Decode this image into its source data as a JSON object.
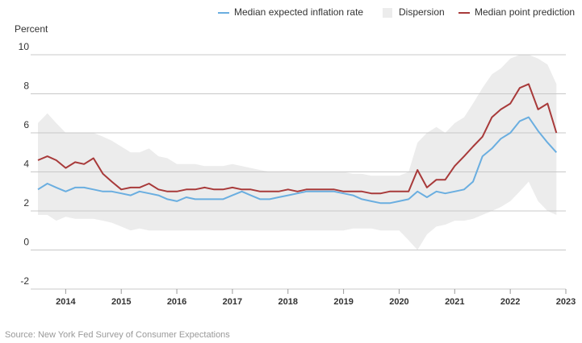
{
  "chart_data": {
    "type": "line",
    "y_label": "Percent",
    "source": "Source: New York Fed Survey of Consumer Expectations",
    "legend": "top-right",
    "grid": true,
    "xlim": [
      2013.37,
      2023.0
    ],
    "xticks": [
      2014,
      2015,
      2016,
      2017,
      2018,
      2019,
      2020,
      2021,
      2022,
      2023
    ],
    "ylim": [
      -2,
      10
    ],
    "yticks": [
      -2,
      0,
      2,
      4,
      6,
      8,
      10
    ],
    "x": [
      2013.5,
      2013.67,
      2013.83,
      2014,
      2014.17,
      2014.33,
      2014.5,
      2014.67,
      2014.83,
      2015,
      2015.17,
      2015.33,
      2015.5,
      2015.67,
      2015.83,
      2016,
      2016.17,
      2016.33,
      2016.5,
      2016.67,
      2016.83,
      2017,
      2017.17,
      2017.33,
      2017.5,
      2017.67,
      2017.83,
      2018,
      2018.17,
      2018.33,
      2018.5,
      2018.67,
      2018.83,
      2019,
      2019.17,
      2019.33,
      2019.5,
      2019.67,
      2019.83,
      2020,
      2020.17,
      2020.33,
      2020.5,
      2020.67,
      2020.83,
      2021,
      2021.17,
      2021.33,
      2021.5,
      2021.67,
      2021.83,
      2022,
      2022.17,
      2022.33,
      2022.5,
      2022.67,
      2022.83
    ],
    "series": [
      {
        "name": "Median expected inflation rate",
        "color": "#6aaee0",
        "values": [
          3.1,
          3.4,
          3.2,
          3.0,
          3.2,
          3.2,
          3.1,
          3.0,
          3.0,
          2.9,
          2.8,
          3.0,
          2.9,
          2.8,
          2.6,
          2.5,
          2.7,
          2.6,
          2.6,
          2.6,
          2.6,
          2.8,
          3.0,
          2.8,
          2.6,
          2.6,
          2.7,
          2.8,
          2.9,
          3.0,
          3.0,
          3.0,
          3.0,
          2.9,
          2.8,
          2.6,
          2.5,
          2.4,
          2.4,
          2.5,
          2.6,
          3.0,
          2.7,
          3.0,
          2.9,
          3.0,
          3.1,
          3.5,
          4.8,
          5.2,
          5.7,
          6.0,
          6.6,
          6.8,
          6.1,
          5.5,
          5.0
        ]
      },
      {
        "name": "Dispersion",
        "color": "#ececec",
        "area": true,
        "upper": [
          6.5,
          7.0,
          6.5,
          6.0,
          6.0,
          6.0,
          6.0,
          5.8,
          5.6,
          5.3,
          5.0,
          5.0,
          5.2,
          4.8,
          4.7,
          4.4,
          4.4,
          4.4,
          4.3,
          4.3,
          4.3,
          4.4,
          4.3,
          4.2,
          4.1,
          4.0,
          4.0,
          4.0,
          4.0,
          4.0,
          4.0,
          4.0,
          4.0,
          4.0,
          3.9,
          3.9,
          3.8,
          3.8,
          3.8,
          3.8,
          4.0,
          5.5,
          6.0,
          6.3,
          6.0,
          6.5,
          6.8,
          7.5,
          8.3,
          9.0,
          9.3,
          9.8,
          10.0,
          10.0,
          9.8,
          9.5,
          8.5
        ],
        "lower": [
          1.8,
          1.8,
          1.5,
          1.7,
          1.6,
          1.6,
          1.6,
          1.5,
          1.4,
          1.2,
          1.0,
          1.1,
          1.0,
          1.0,
          1.0,
          1.0,
          1.0,
          1.0,
          1.0,
          1.0,
          1.0,
          1.0,
          1.0,
          1.0,
          1.0,
          1.0,
          1.0,
          1.0,
          1.0,
          1.0,
          1.0,
          1.0,
          1.0,
          1.0,
          1.1,
          1.1,
          1.1,
          1.0,
          1.0,
          1.0,
          0.5,
          0.0,
          0.8,
          1.2,
          1.3,
          1.5,
          1.5,
          1.6,
          1.8,
          2.0,
          2.2,
          2.5,
          3.0,
          3.5,
          2.5,
          2.0,
          1.8
        ]
      },
      {
        "name": "Median point prediction",
        "color": "#a83a3a",
        "values": [
          4.6,
          4.8,
          4.6,
          4.2,
          4.5,
          4.4,
          4.7,
          3.9,
          3.5,
          3.1,
          3.2,
          3.2,
          3.4,
          3.1,
          3.0,
          3.0,
          3.1,
          3.1,
          3.2,
          3.1,
          3.1,
          3.2,
          3.1,
          3.1,
          3.0,
          3.0,
          3.0,
          3.1,
          3.0,
          3.1,
          3.1,
          3.1,
          3.1,
          3.0,
          3.0,
          3.0,
          2.9,
          2.9,
          3.0,
          3.0,
          3.0,
          4.1,
          3.2,
          3.6,
          3.6,
          4.3,
          4.8,
          5.3,
          5.8,
          6.8,
          7.2,
          7.5,
          8.3,
          8.5,
          7.2,
          7.5,
          6.0
        ]
      }
    ]
  }
}
